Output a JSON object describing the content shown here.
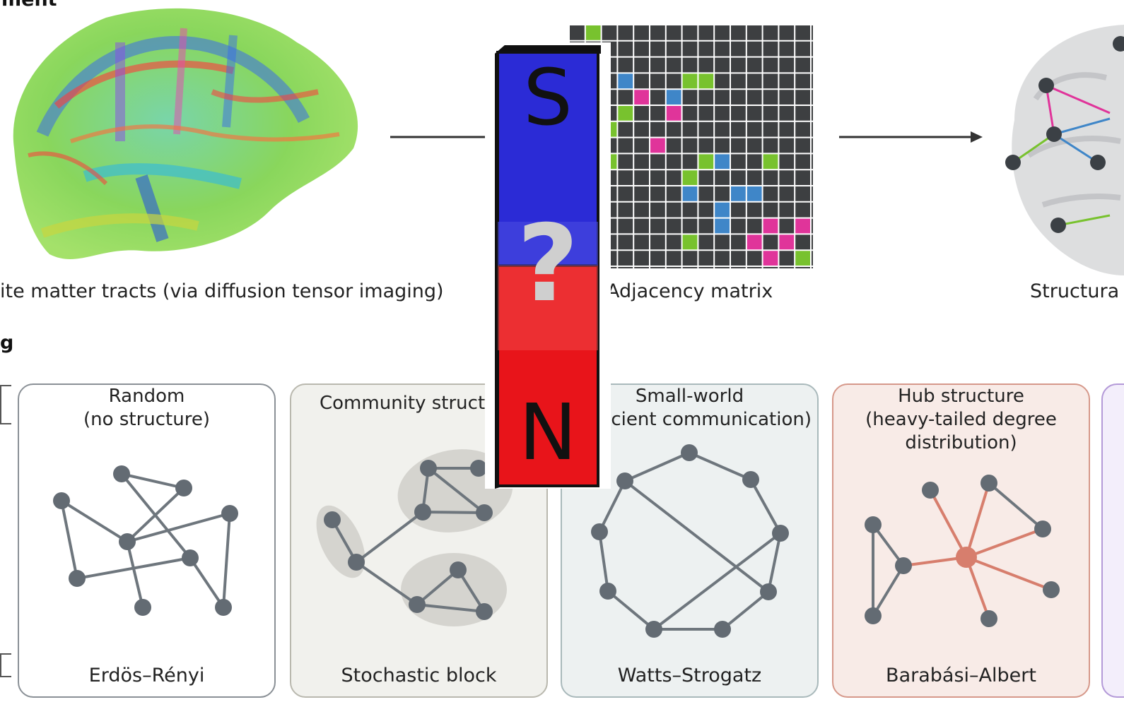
{
  "section_a_heading": "ment",
  "section_b_heading": "g",
  "top_row": {
    "tracts_caption": "ite matter tracts (via diffusion tensor imaging)",
    "matrix_caption": "Adjacency matrix",
    "structural_caption": "Structura"
  },
  "magnet": {
    "top_letter": "S",
    "middle_symbol": "?",
    "bottom_letter": "N",
    "top_color": "#2b2bd6",
    "bottom_color": "#e8141a"
  },
  "models": [
    {
      "title_line1": "Random",
      "title_line2": "(no structure)",
      "title_line3": "",
      "model_name": "Erdös–Rényi",
      "bg": "#ffffff",
      "border": "#8a9096"
    },
    {
      "title_line1": "Community struct",
      "title_line2": "",
      "title_line3": "",
      "model_name": "Stochastic block",
      "bg": "#f1f1ed",
      "border": "#b9b8ae"
    },
    {
      "title_line1": "Small-world",
      "title_line2": "cient communication)",
      "title_line3": "",
      "model_name": "Watts–Strogatz",
      "bg": "#edf1f1",
      "border": "#a9b9bb"
    },
    {
      "title_line1": "Hub structure",
      "title_line2": "(heavy-tailed degree",
      "title_line3": "distribution)",
      "model_name": "Barabási–Albert",
      "bg": "#f8ebe7",
      "border": "#d6988a"
    }
  ],
  "colors": {
    "node": "#636b73",
    "edge": "#6e767d",
    "hub": "#d77e6d",
    "matrix_bg": "#3d3f41",
    "green": "#78c22e",
    "blue": "#3f86c8",
    "magenta": "#e0349a"
  }
}
